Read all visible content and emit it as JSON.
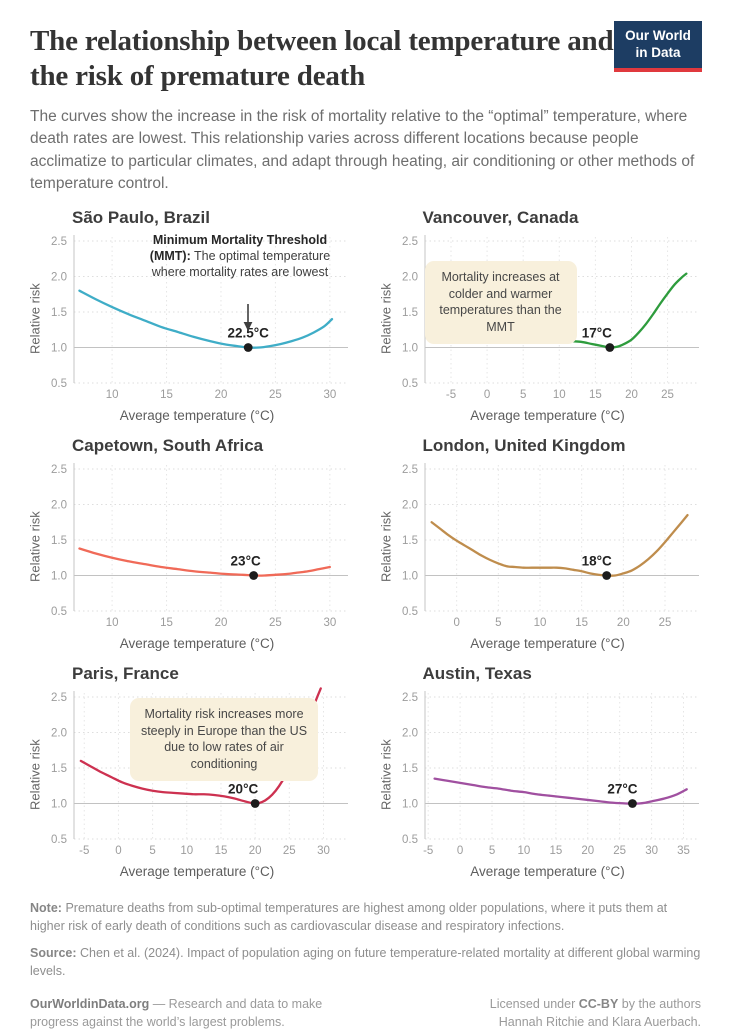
{
  "header": {
    "title": "The relationship between local temperature and the risk of premature death",
    "subtitle": "The curves show the increase in the risk of mortality relative to the “optimal” temperature, where death rates are lowest. This relationship varies across different locations because people acclimatize to particular climates, and adapt through heating, air conditioning or other methods of temperature control.",
    "logo_line1": "Our World",
    "logo_line2": "in Data"
  },
  "chart_data": [
    {
      "type": "line",
      "city": "São Paulo, Brazil",
      "color": "#3fadc7",
      "xlabel": "Average temperature (°C)",
      "ylabel": "Relative risk",
      "xlim": [
        6.5,
        31.3
      ],
      "ylim": [
        0.5,
        2.5
      ],
      "xticks": [
        10,
        15,
        20,
        25,
        30
      ],
      "yticks": [
        0.5,
        1.0,
        1.5,
        2.0,
        2.5
      ],
      "mmt": {
        "x": 22.5,
        "y": 1.0,
        "label": "22.5°C",
        "label_dx": 0
      },
      "annotation": {
        "bold": "Minimum Mortality Threshold (MMT):",
        "text": "The optimal temperature where mortality rates are lowest"
      },
      "points": [
        [
          7,
          1.8
        ],
        [
          8.5,
          1.68
        ],
        [
          10,
          1.57
        ],
        [
          11.5,
          1.47
        ],
        [
          13,
          1.38
        ],
        [
          14.5,
          1.29
        ],
        [
          16,
          1.22
        ],
        [
          17.5,
          1.15
        ],
        [
          19,
          1.09
        ],
        [
          20.5,
          1.04
        ],
        [
          21.5,
          1.02
        ],
        [
          22.5,
          1.0
        ],
        [
          23.5,
          1.0
        ],
        [
          24.5,
          1.02
        ],
        [
          25.5,
          1.05
        ],
        [
          26.5,
          1.09
        ],
        [
          27.5,
          1.14
        ],
        [
          28.5,
          1.21
        ],
        [
          29.5,
          1.3
        ],
        [
          30.2,
          1.4
        ]
      ]
    },
    {
      "type": "line",
      "city": "Vancouver, Canada",
      "color": "#2e9c3d",
      "xlabel": "Average temperature (°C)",
      "ylabel": "Relative risk",
      "xlim": [
        -8.6,
        28.8
      ],
      "ylim": [
        0.5,
        2.5
      ],
      "xticks": [
        -5,
        0,
        5,
        10,
        15,
        20,
        25
      ],
      "yticks": [
        0.5,
        1.0,
        1.5,
        2.0,
        2.5
      ],
      "mmt": {
        "x": 17,
        "y": 1.0,
        "label": "17°C",
        "label_dx": -13
      },
      "callout": "Mortality increases at colder and warmer temperatures than the MMT",
      "points": [
        [
          -8,
          1.29
        ],
        [
          -6,
          1.26
        ],
        [
          -4,
          1.23
        ],
        [
          -2,
          1.2
        ],
        [
          0,
          1.18
        ],
        [
          2,
          1.16
        ],
        [
          4,
          1.14
        ],
        [
          6,
          1.12
        ],
        [
          8,
          1.11
        ],
        [
          10,
          1.1
        ],
        [
          11.5,
          1.09
        ],
        [
          13,
          1.08
        ],
        [
          14.5,
          1.05
        ],
        [
          16,
          1.02
        ],
        [
          17,
          1.0
        ],
        [
          18,
          1.01
        ],
        [
          19,
          1.05
        ],
        [
          20,
          1.11
        ],
        [
          21,
          1.21
        ],
        [
          22,
          1.33
        ],
        [
          23,
          1.47
        ],
        [
          24,
          1.62
        ],
        [
          25,
          1.76
        ],
        [
          26,
          1.89
        ],
        [
          27,
          1.99
        ],
        [
          27.6,
          2.04
        ]
      ]
    },
    {
      "type": "line",
      "city": "Capetown, South Africa",
      "color": "#f06a58",
      "xlabel": "Average temperature (°C)",
      "ylabel": "Relative risk",
      "xlim": [
        6.5,
        31.3
      ],
      "ylim": [
        0.5,
        2.5
      ],
      "xticks": [
        10,
        15,
        20,
        25,
        30
      ],
      "yticks": [
        0.5,
        1.0,
        1.5,
        2.0,
        2.5
      ],
      "mmt": {
        "x": 23,
        "y": 1.0,
        "label": "23°C",
        "label_dx": -8
      },
      "points": [
        [
          7,
          1.38
        ],
        [
          8.5,
          1.31
        ],
        [
          10,
          1.25
        ],
        [
          11.5,
          1.2
        ],
        [
          13,
          1.16
        ],
        [
          14.5,
          1.12
        ],
        [
          16,
          1.09
        ],
        [
          17.5,
          1.06
        ],
        [
          19,
          1.04
        ],
        [
          20.5,
          1.02
        ],
        [
          22,
          1.01
        ],
        [
          23,
          1.0
        ],
        [
          24,
          1.0
        ],
        [
          25,
          1.01
        ],
        [
          26,
          1.02
        ],
        [
          27,
          1.04
        ],
        [
          28,
          1.06
        ],
        [
          29,
          1.09
        ],
        [
          30,
          1.12
        ]
      ]
    },
    {
      "type": "line",
      "city": "London, United Kingdom",
      "color": "#bf8d4d",
      "xlabel": "Average temperature (°C)",
      "ylabel": "Relative risk",
      "xlim": [
        -3.8,
        28.6
      ],
      "ylim": [
        0.5,
        2.5
      ],
      "xticks": [
        0,
        5,
        10,
        15,
        20,
        25
      ],
      "yticks": [
        0.5,
        1.0,
        1.5,
        2.0,
        2.5
      ],
      "mmt": {
        "x": 18,
        "y": 1.0,
        "label": "18°C",
        "label_dx": -10
      },
      "points": [
        [
          -3,
          1.75
        ],
        [
          -2,
          1.66
        ],
        [
          -1,
          1.57
        ],
        [
          0,
          1.49
        ],
        [
          1,
          1.42
        ],
        [
          2,
          1.35
        ],
        [
          3,
          1.28
        ],
        [
          4,
          1.22
        ],
        [
          5,
          1.17
        ],
        [
          6,
          1.13
        ],
        [
          7,
          1.12
        ],
        [
          8,
          1.11
        ],
        [
          9,
          1.11
        ],
        [
          10,
          1.11
        ],
        [
          11,
          1.11
        ],
        [
          12,
          1.11
        ],
        [
          13,
          1.1
        ],
        [
          14,
          1.08
        ],
        [
          15,
          1.06
        ],
        [
          16,
          1.03
        ],
        [
          17,
          1.01
        ],
        [
          18,
          1.0
        ],
        [
          19,
          1.0
        ],
        [
          20,
          1.03
        ],
        [
          21,
          1.07
        ],
        [
          22,
          1.14
        ],
        [
          23,
          1.23
        ],
        [
          24,
          1.34
        ],
        [
          25,
          1.47
        ],
        [
          26,
          1.61
        ],
        [
          27,
          1.75
        ],
        [
          27.7,
          1.85
        ]
      ]
    },
    {
      "type": "line",
      "city": "Paris, France",
      "color": "#cd3150",
      "xlabel": "Average temperature (°C)",
      "ylabel": "Relative risk",
      "xlim": [
        -6.5,
        33.0
      ],
      "ylim": [
        0.5,
        2.5
      ],
      "xticks": [
        -5,
        0,
        5,
        10,
        15,
        20,
        25,
        30
      ],
      "yticks": [
        0.5,
        1.0,
        1.5,
        2.0,
        2.5
      ],
      "mmt": {
        "x": 20,
        "y": 1.0,
        "label": "20°C",
        "label_dx": -12
      },
      "callout": "Mortality risk increases more steeply in Europe than the US due to low rates of air conditioning",
      "points": [
        [
          -5.5,
          1.6
        ],
        [
          -4,
          1.52
        ],
        [
          -2.5,
          1.44
        ],
        [
          -1,
          1.37
        ],
        [
          0.5,
          1.3
        ],
        [
          2,
          1.25
        ],
        [
          3.5,
          1.21
        ],
        [
          5,
          1.18
        ],
        [
          6.5,
          1.16
        ],
        [
          8,
          1.15
        ],
        [
          9.5,
          1.14
        ],
        [
          11,
          1.13
        ],
        [
          12.5,
          1.13
        ],
        [
          14,
          1.12
        ],
        [
          15.5,
          1.1
        ],
        [
          17,
          1.07
        ],
        [
          18.5,
          1.03
        ],
        [
          20,
          1.0
        ],
        [
          21,
          1.02
        ],
        [
          22,
          1.08
        ],
        [
          23,
          1.18
        ],
        [
          24,
          1.32
        ],
        [
          25,
          1.5
        ],
        [
          26,
          1.72
        ],
        [
          27,
          1.96
        ],
        [
          28,
          2.22
        ],
        [
          29,
          2.48
        ],
        [
          29.6,
          2.62
        ]
      ]
    },
    {
      "type": "line",
      "city": "Austin, Texas",
      "color": "#a050a0",
      "xlabel": "Average temperature (°C)",
      "ylabel": "Relative risk",
      "xlim": [
        -5.5,
        36.8
      ],
      "ylim": [
        0.5,
        2.5
      ],
      "xticks": [
        -5,
        0,
        5,
        10,
        15,
        20,
        25,
        30,
        35
      ],
      "yticks": [
        0.5,
        1.0,
        1.5,
        2.0,
        2.5
      ],
      "mmt": {
        "x": 27,
        "y": 1.0,
        "label": "27°C",
        "label_dx": -10
      },
      "points": [
        [
          -4,
          1.35
        ],
        [
          -2,
          1.32
        ],
        [
          0,
          1.29
        ],
        [
          2,
          1.26
        ],
        [
          4,
          1.23
        ],
        [
          6,
          1.21
        ],
        [
          8,
          1.18
        ],
        [
          10,
          1.16
        ],
        [
          12,
          1.13
        ],
        [
          14,
          1.11
        ],
        [
          16,
          1.09
        ],
        [
          18,
          1.07
        ],
        [
          20,
          1.05
        ],
        [
          22,
          1.03
        ],
        [
          24,
          1.01
        ],
        [
          26,
          1.0
        ],
        [
          27,
          1.0
        ],
        [
          28,
          1.0
        ],
        [
          29,
          1.01
        ],
        [
          30,
          1.03
        ],
        [
          32,
          1.07
        ],
        [
          34,
          1.13
        ],
        [
          35.5,
          1.2
        ]
      ]
    }
  ],
  "footer": {
    "note_label": "Note:",
    "note_text": "Premature deaths from sub-optimal temperatures are highest among older populations, where it puts them at higher risk of early death of conditions such as cardiovascular disease and respiratory infections.",
    "source_label": "Source:",
    "source_text": "Chen et al. (2024). Impact of population aging on future temperature-related mortality at different global warming levels.",
    "site": "OurWorldinData.org",
    "site_tagline": " — Research and data to make progress against the world’s largest problems.",
    "license_pre": "Licensed under ",
    "license_cc": "CC-BY",
    "license_post": " by the authors",
    "authors": "Hannah Ritchie and Klara Auerbach."
  }
}
